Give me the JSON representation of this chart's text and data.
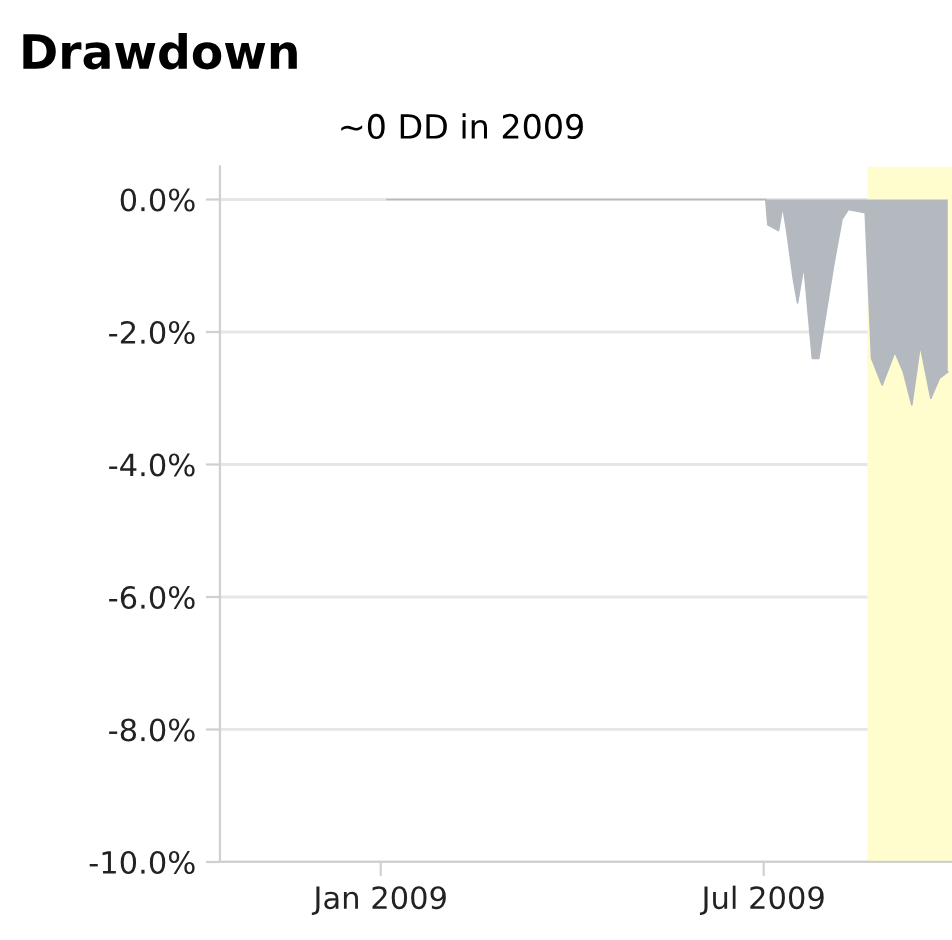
{
  "chart_data": {
    "type": "area",
    "title": "Drawdown",
    "subtitle": "~0 DD in 2009",
    "x": [
      "2009-01-04",
      "2009-07-02",
      "2009-07-03",
      "2009-07-08",
      "2009-07-10",
      "2009-07-12",
      "2009-07-15",
      "2009-07-17",
      "2009-07-20",
      "2009-07-24",
      "2009-07-27",
      "2009-08-03",
      "2009-08-07",
      "2009-08-10",
      "2009-08-18",
      "2009-08-21",
      "2009-08-26",
      "2009-09-01",
      "2009-09-05",
      "2009-09-09",
      "2009-09-13",
      "2009-09-18",
      "2009-09-22",
      "2009-09-26"
    ],
    "series": [
      {
        "color": "#b3b9bf",
        "values": [
          0,
          0,
          -0.38,
          -0.47,
          -0.1,
          -0.5,
          -1.2,
          -1.56,
          -1.0,
          -2.4,
          -2.4,
          -1.0,
          -0.3,
          -0.15,
          -0.2,
          -2.4,
          -2.8,
          -2.3,
          -2.6,
          -3.1,
          -2.2,
          -3.0,
          -2.7,
          -2.6
        ]
      }
    ],
    "xlim": [
      "2008-10-17",
      "2009-09-28"
    ],
    "xticks": [
      {
        "value": "2009-01-01",
        "label": "Jan 2009"
      },
      {
        "value": "2009-07-01",
        "label": "Jul 2009"
      }
    ],
    "ylim": [
      -10,
      0.5
    ],
    "yticks": [
      {
        "value": 0,
        "label": "0.0%"
      },
      {
        "value": -2,
        "label": "-2.0%"
      },
      {
        "value": -4,
        "label": "-4.0%"
      },
      {
        "value": -6,
        "label": "-6.0%"
      },
      {
        "value": -8,
        "label": "-8.0%"
      },
      {
        "value": -10,
        "label": "-10.0%"
      }
    ],
    "bands": [
      {
        "axis": "x",
        "from": "2009-08-19",
        "to": "2009-09-28",
        "color": "#fffcce"
      }
    ],
    "grid": "y"
  }
}
